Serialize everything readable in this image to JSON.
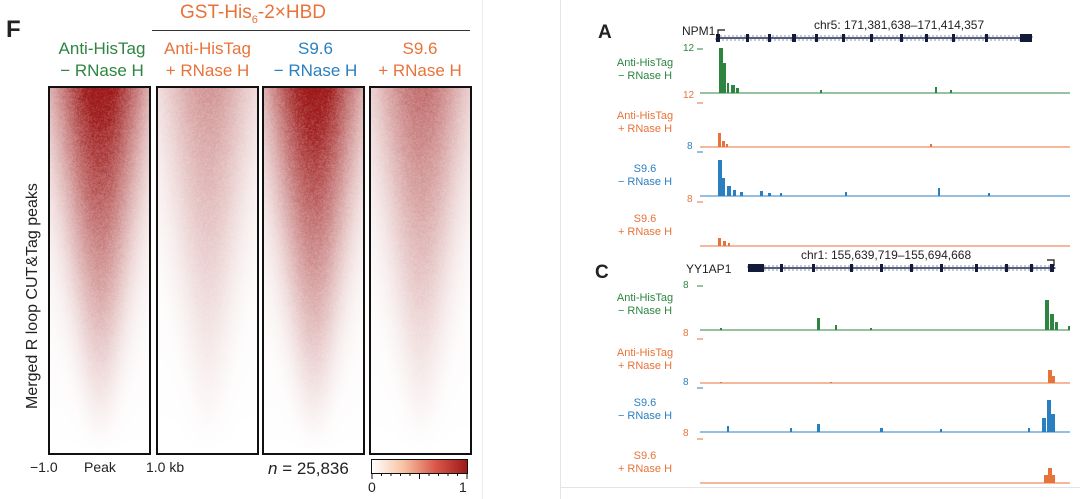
{
  "panelF": {
    "letter": "F",
    "construct_main": "GST-His",
    "construct_sub": "6",
    "construct_tail": "-2×HBD",
    "columns": [
      {
        "line1": "Anti-HisTag",
        "line2": "− RNase H",
        "color": "#2e8540",
        "intensity": 1.0
      },
      {
        "line1": "Anti-HisTag",
        "line2": "+ RNase H",
        "color": "#e8733a",
        "intensity": 0.42
      },
      {
        "line1": "S9.6",
        "line2": "− RNase H",
        "color": "#2a7fc1",
        "intensity": 1.0
      },
      {
        "line1": "S9.6",
        "line2": "+ RNase H",
        "color": "#e8733a",
        "intensity": 0.58
      }
    ],
    "ylabel": "Merged R loop CUT&Tag peaks",
    "x_left": "−1.0",
    "x_mid": "Peak",
    "x_right": "1.0 kb",
    "n_italic": "n",
    "n_value": " = 25,836",
    "colorbar": {
      "min": "0",
      "max": "1",
      "low_color": "#ffffff",
      "high_color": "#9e1a1a"
    }
  },
  "panelA": {
    "letter": "A",
    "gene": "NPM1",
    "coords": "chr5: 171,381,638–171,414,357",
    "tracks": [
      {
        "line1": "Anti-HisTag",
        "line2": "− RNase H",
        "scale": "12",
        "color": "#2e8540"
      },
      {
        "line1": "Anti-HisTag",
        "line2": "+ RNase H",
        "scale": "12",
        "color": "#e8733a"
      },
      {
        "line1": "S9.6",
        "line2": "− RNase H",
        "scale": "8",
        "color": "#2a7fc1"
      },
      {
        "line1": "S9.6",
        "line2": "+ RNase H",
        "scale": "8",
        "color": "#e8733a"
      }
    ]
  },
  "panelC": {
    "letter": "C",
    "gene": "YY1AP1",
    "coords": "chr1: 155,639,719–155,694,668",
    "tracks": [
      {
        "line1": "Anti-HisTag",
        "line2": "− RNase H",
        "scale": "8",
        "color": "#2e8540"
      },
      {
        "line1": "Anti-HisTag",
        "line2": "+ RNase H",
        "scale": "8",
        "color": "#e8733a"
      },
      {
        "line1": "S9.6",
        "line2": "− RNase H",
        "scale": "8",
        "color": "#2a7fc1"
      },
      {
        "line1": "S9.6",
        "line2": "+ RNase H",
        "scale": "8",
        "color": "#e8733a"
      }
    ]
  }
}
